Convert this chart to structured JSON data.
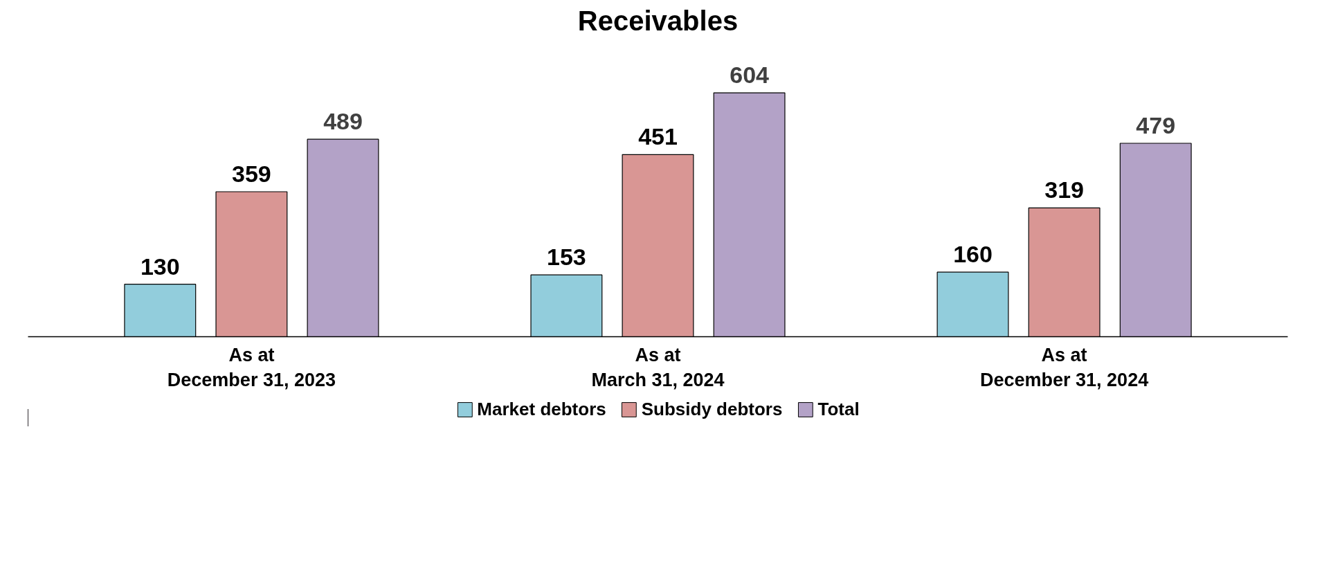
{
  "chart_data": {
    "type": "bar",
    "title": "Receivables",
    "categories": [
      "As at\nDecember 31, 2023",
      "As at\nMarch 31, 2024",
      "As at\nDecember 31, 2024"
    ],
    "series": [
      {
        "name": "Market debtors",
        "color": "#92cddc",
        "values": [
          130,
          153,
          160
        ]
      },
      {
        "name": "Subsidy debtors",
        "color": "#d99694",
        "values": [
          359,
          451,
          319
        ]
      },
      {
        "name": "Total",
        "color": "#b3a2c7",
        "values": [
          489,
          604,
          479
        ]
      }
    ],
    "data_labels": true,
    "legend": "bottom",
    "grid": false,
    "tick_labels": "x"
  }
}
